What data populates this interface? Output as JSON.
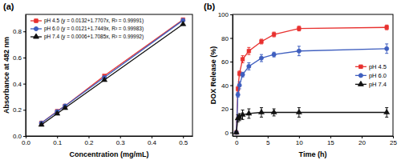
{
  "chart_data": [
    {
      "type": "line",
      "title": "(a)",
      "x_label": "Concentration (mg/mL)",
      "y_label": "Absorbance at 482 nm",
      "x": [
        0.05,
        0.1,
        0.125,
        0.25,
        0.5
      ],
      "series": [
        {
          "name": "pH 4.5 (y = 0.0132+1.7707x, R² = 0.99991)",
          "color": "#e8312f",
          "marker": "square",
          "values": [
            0.1,
            0.19,
            0.23,
            0.46,
            0.89
          ]
        },
        {
          "name": "pH 6.0 (y = 0.0121+1.7449x, R² = 0.99983)",
          "color": "#3f5fbf",
          "marker": "circle",
          "values": [
            0.099,
            0.187,
            0.23,
            0.448,
            0.885
          ]
        },
        {
          "name": "pH 7.4 (y = 0.0006+1.7085x, R² = 0.99992)",
          "color": "#111111",
          "marker": "triangle",
          "values": [
            0.086,
            0.171,
            0.214,
            0.428,
            0.855
          ]
        }
      ],
      "xlim": [
        0,
        0.53
      ],
      "ylim": [
        0,
        0.93
      ],
      "xticks": [
        {
          "value": 0,
          "label": "0.0"
        },
        0.1,
        0.2,
        0.3,
        0.4,
        0.5
      ],
      "yticks": [
        {
          "value": 0,
          "label": "0.0"
        },
        0.2,
        0.4,
        0.6,
        0.8
      ],
      "legend": "upper left"
    },
    {
      "type": "line",
      "title": "(b)",
      "x_label": "Time (h)",
      "y_label": "DOX Release (%)",
      "x": [
        0,
        0.25,
        0.5,
        1,
        2,
        4,
        6,
        10,
        24
      ],
      "series": [
        {
          "name": "pH 4.5",
          "color": "#e8312f",
          "marker": "square",
          "values": [
            0,
            37,
            50,
            62,
            69,
            77,
            83,
            88,
            89
          ],
          "errors": [
            0,
            2,
            2,
            3,
            3,
            2,
            2,
            2,
            2
          ]
        },
        {
          "name": "pH 6.0",
          "color": "#3f5fbf",
          "marker": "circle",
          "values": [
            0,
            32,
            40,
            49,
            56,
            63,
            66,
            69,
            71
          ],
          "errors": [
            0,
            2,
            3,
            2,
            3,
            3,
            2,
            4,
            4
          ]
        },
        {
          "name": "pH 7.4",
          "color": "#111111",
          "marker": "triangle",
          "values": [
            0,
            12,
            13,
            15,
            16,
            17,
            17,
            17,
            17
          ],
          "errors": [
            0,
            3,
            3,
            4,
            4,
            4,
            3,
            4,
            4
          ]
        }
      ],
      "xlim": [
        -0.6,
        25
      ],
      "ylim": [
        -3,
        100
      ],
      "xticks": [
        0,
        5,
        10,
        15,
        20,
        25
      ],
      "yticks": [
        0,
        20,
        40,
        60,
        80,
        100
      ],
      "legend": "center right"
    }
  ]
}
